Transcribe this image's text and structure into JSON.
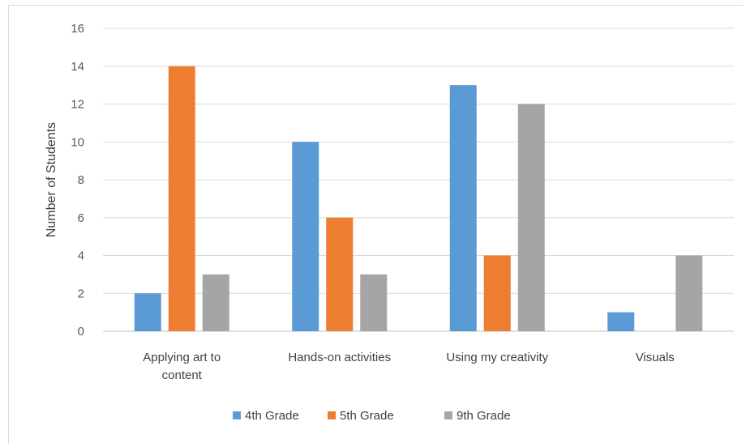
{
  "chart_data": {
    "type": "bar",
    "categories": [
      [
        "Applying art to",
        "content"
      ],
      [
        "Hands-on activities"
      ],
      [
        "Using my creativity"
      ],
      [
        "Visuals"
      ]
    ],
    "series": [
      {
        "name": "4th Grade",
        "color": "#5b9bd5",
        "values": [
          2,
          10,
          13,
          1
        ]
      },
      {
        "name": "5th Grade",
        "color": "#ed7d31",
        "values": [
          14,
          6,
          4,
          0
        ]
      },
      {
        "name": "9th Grade",
        "color": "#a5a5a5",
        "values": [
          3,
          3,
          12,
          4
        ]
      }
    ],
    "ylabel": "Number of Students",
    "ylim": [
      0,
      16
    ],
    "yticks": [
      0,
      2,
      4,
      6,
      8,
      10,
      12,
      14,
      16
    ],
    "grid": true,
    "legend": "bottom"
  }
}
